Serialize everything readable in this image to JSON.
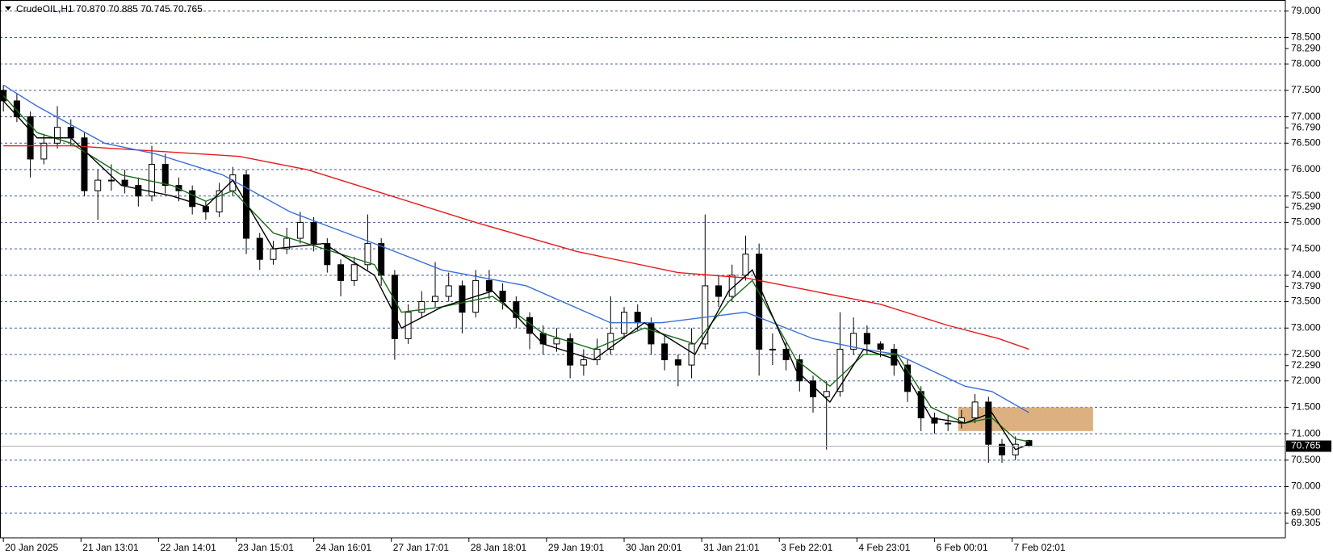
{
  "chart_data": {
    "type": "candlestick",
    "title": "CrudeOIL,H1  70.870 70.885 70.745 70.765",
    "xlim": [
      -1,
      380
    ],
    "ylim": [
      69.03,
      79.21
    ],
    "grid": true,
    "grid_color": "#3c5a9a",
    "yticks": [
      {
        "value": 79,
        "label": "79.000"
      },
      {
        "value": 78.5,
        "label": "78.500"
      },
      {
        "value": 78,
        "label": "78.000"
      },
      {
        "value": 77.5,
        "label": "77.500"
      },
      {
        "value": 77,
        "label": "77.000"
      },
      {
        "value": 76.5,
        "label": "76.500"
      },
      {
        "value": 76,
        "label": "76.000"
      },
      {
        "value": 75.5,
        "label": "75.500"
      },
      {
        "value": 75,
        "label": "75.000"
      },
      {
        "value": 74.5,
        "label": "74.500"
      },
      {
        "value": 74,
        "label": "74.000"
      },
      {
        "value": 73.5,
        "label": "73.500"
      },
      {
        "value": 73,
        "label": "73.000"
      },
      {
        "value": 72.5,
        "label": "72.500"
      },
      {
        "value": 72,
        "label": "72.000"
      },
      {
        "value": 71.5,
        "label": "71.500"
      },
      {
        "value": 71,
        "label": "71.000"
      },
      {
        "value": 70.5,
        "label": "70.500"
      },
      {
        "value": 70,
        "label": "70.000"
      },
      {
        "value": 69.5,
        "label": "69.500"
      }
    ],
    "price_labels": [
      {
        "value": 78.29,
        "label": "78.290"
      },
      {
        "value": 76.79,
        "label": "76.790"
      },
      {
        "value": 75.29,
        "label": "75.290"
      },
      {
        "value": 73.79,
        "label": "73.790"
      },
      {
        "value": 72.29,
        "label": "72.290"
      },
      {
        "value": 69.305,
        "label": "69.305"
      }
    ],
    "current_price": {
      "value": 70.765,
      "label": "70.765"
    },
    "xticks": [
      {
        "value": 0,
        "label": "20 Jan 2025"
      },
      {
        "value": 23,
        "label": "21 Jan 13:01"
      },
      {
        "value": 46,
        "label": "22 Jan 14:01"
      },
      {
        "value": 69,
        "label": "23 Jan 15:01"
      },
      {
        "value": 92,
        "label": "24 Jan 16:01"
      },
      {
        "value": 115,
        "label": "27 Jan 17:01"
      },
      {
        "value": 138,
        "label": "28 Jan 18:01"
      },
      {
        "value": 161,
        "label": "29 Jan 19:01"
      },
      {
        "value": 184,
        "label": "30 Jan 20:01"
      },
      {
        "value": 207,
        "label": "31 Jan 21:01"
      },
      {
        "value": 230,
        "label": "3 Feb 22:01"
      },
      {
        "value": 253,
        "label": "4 Feb 23:01"
      },
      {
        "value": 276,
        "label": "6 Feb 00:01"
      },
      {
        "value": 299,
        "label": "7 Feb 02:01"
      }
    ],
    "candles": {
      "x": [
        0,
        4,
        8,
        12,
        16,
        20,
        24,
        28,
        32,
        36,
        40,
        44,
        48,
        52,
        56,
        60,
        64,
        68,
        72,
        76,
        80,
        84,
        88,
        92,
        96,
        100,
        104,
        108,
        112,
        116,
        120,
        124,
        128,
        132,
        136,
        140,
        144,
        148,
        152,
        156,
        160,
        164,
        168,
        172,
        176,
        180,
        184,
        188,
        192,
        196,
        200,
        204,
        208,
        212,
        216,
        220,
        224,
        228,
        232,
        236,
        240,
        244,
        248,
        252,
        256,
        260,
        264,
        268,
        272,
        276,
        280,
        284,
        288,
        292,
        296,
        300,
        304
      ],
      "open": [
        77.5,
        77.3,
        77.0,
        76.2,
        76.5,
        76.8,
        76.6,
        75.6,
        75.8,
        75.8,
        75.7,
        75.5,
        76.1,
        75.7,
        75.6,
        75.3,
        75.2,
        75.6,
        75.9,
        74.7,
        74.3,
        74.5,
        74.7,
        75.0,
        74.6,
        74.2,
        73.9,
        74.2,
        74.6,
        74.0,
        72.8,
        73.3,
        73.5,
        73.6,
        73.8,
        73.3,
        73.9,
        73.7,
        73.5,
        73.2,
        72.9,
        72.7,
        72.8,
        72.3,
        72.4,
        72.6,
        72.9,
        73.3,
        73.1,
        72.7,
        72.4,
        72.3,
        72.7,
        73.8,
        73.6,
        74.0,
        74.4,
        72.6,
        72.6,
        72.4,
        72.0,
        71.7,
        71.8,
        72.6,
        72.9,
        72.7,
        72.6,
        72.3,
        71.8,
        71.3,
        71.2,
        71.2,
        71.3,
        71.6,
        70.8,
        70.6,
        70.87
      ],
      "high": [
        77.6,
        77.45,
        77.1,
        76.65,
        77.2,
        76.95,
        76.7,
        76.0,
        76.1,
        76.0,
        75.85,
        76.45,
        76.3,
        75.85,
        75.7,
        75.4,
        75.75,
        76.05,
        76.0,
        74.8,
        74.65,
        74.9,
        75.2,
        75.1,
        74.7,
        74.3,
        74.35,
        75.15,
        74.7,
        74.1,
        73.45,
        73.7,
        74.25,
        74.05,
        73.9,
        74.1,
        74.1,
        73.85,
        73.6,
        73.3,
        73.05,
        73.0,
        72.9,
        72.6,
        72.8,
        73.6,
        73.4,
        73.45,
        73.2,
        72.85,
        72.5,
        73.0,
        75.15,
        74.0,
        74.2,
        74.75,
        74.6,
        72.9,
        72.75,
        72.5,
        72.1,
        72.0,
        73.3,
        73.2,
        73.05,
        72.75,
        72.7,
        72.4,
        71.9,
        71.4,
        71.35,
        71.45,
        71.75,
        71.7,
        70.9,
        70.95,
        70.885
      ],
      "low": [
        77.1,
        76.9,
        75.85,
        76.1,
        76.4,
        76.45,
        75.5,
        75.05,
        75.6,
        75.55,
        75.3,
        75.4,
        75.55,
        75.4,
        75.15,
        75.05,
        75.1,
        75.5,
        74.4,
        74.1,
        74.2,
        74.4,
        74.6,
        74.45,
        74.05,
        73.6,
        73.8,
        74.1,
        73.8,
        72.4,
        72.7,
        73.2,
        73.4,
        73.5,
        72.9,
        73.2,
        73.55,
        73.35,
        73.0,
        72.6,
        72.5,
        72.55,
        72.05,
        72.1,
        72.3,
        72.5,
        72.8,
        72.95,
        72.5,
        72.2,
        71.9,
        72.05,
        72.6,
        73.4,
        73.5,
        73.9,
        72.1,
        72.3,
        72.2,
        71.8,
        71.4,
        70.7,
        71.7,
        72.5,
        72.5,
        72.45,
        72.1,
        71.6,
        71.05,
        71.0,
        71.05,
        71.1,
        71.2,
        70.45,
        70.45,
        70.5,
        70.745
      ],
      "close": [
        77.3,
        77.0,
        76.2,
        76.5,
        76.8,
        76.6,
        75.6,
        75.8,
        75.8,
        75.7,
        75.5,
        76.1,
        75.7,
        75.6,
        75.3,
        75.2,
        75.6,
        75.9,
        74.7,
        74.3,
        74.5,
        74.7,
        75.0,
        74.6,
        74.2,
        73.9,
        74.2,
        74.6,
        74.0,
        72.8,
        73.3,
        73.5,
        73.6,
        73.8,
        73.3,
        73.9,
        73.7,
        73.5,
        73.2,
        72.9,
        72.7,
        72.8,
        72.3,
        72.4,
        72.6,
        72.9,
        73.3,
        73.1,
        72.7,
        72.4,
        72.3,
        72.7,
        73.8,
        73.6,
        74.0,
        74.4,
        72.6,
        72.6,
        72.4,
        72.0,
        71.7,
        71.8,
        72.6,
        72.9,
        72.7,
        72.6,
        72.3,
        71.8,
        71.3,
        71.2,
        71.2,
        71.3,
        71.6,
        70.8,
        70.6,
        70.8,
        70.765
      ],
      "up_color": "#ffffff",
      "down_color": "#000000",
      "edge_color": "#000000"
    },
    "lines": [
      {
        "color": "#e8191c",
        "x": [
          0,
          20,
          45,
          70,
          90,
          115,
          140,
          170,
          200,
          220,
          240,
          260,
          280,
          295,
          304
        ],
        "values": [
          76.45,
          76.45,
          76.35,
          76.25,
          76.0,
          75.5,
          75.0,
          74.45,
          74.05,
          73.95,
          73.7,
          73.45,
          73.05,
          72.8,
          72.6
        ]
      },
      {
        "color": "#3a6fd8",
        "x": [
          0,
          10,
          30,
          45,
          65,
          85,
          110,
          130,
          155,
          180,
          195,
          220,
          240,
          255,
          265,
          285,
          293,
          304
        ],
        "values": [
          77.6,
          77.2,
          76.5,
          76.3,
          75.9,
          75.2,
          74.6,
          74.1,
          73.8,
          73.1,
          73.1,
          73.3,
          72.8,
          72.6,
          72.5,
          71.9,
          71.8,
          71.4
        ]
      },
      {
        "color": "#1a6b1a",
        "x": [
          0,
          10,
          20,
          35,
          50,
          60,
          68,
          80,
          95,
          110,
          118,
          130,
          145,
          160,
          175,
          190,
          205,
          215,
          222,
          235,
          245,
          255,
          265,
          275,
          285,
          293,
          300,
          304
        ],
        "values": [
          77.4,
          76.7,
          76.5,
          75.9,
          75.7,
          75.4,
          75.6,
          74.8,
          74.5,
          74.2,
          73.3,
          73.4,
          73.6,
          72.9,
          72.6,
          73.0,
          72.7,
          73.5,
          73.9,
          72.4,
          71.9,
          72.5,
          72.5,
          71.5,
          71.2,
          71.3,
          70.9,
          70.85
        ]
      },
      {
        "color": "#000000",
        "x": [
          0,
          10,
          20,
          35,
          50,
          60,
          68,
          80,
          95,
          110,
          118,
          130,
          145,
          160,
          175,
          190,
          205,
          215,
          222,
          235,
          245,
          255,
          265,
          275,
          285,
          293,
          300,
          304
        ],
        "values": [
          77.3,
          76.6,
          76.6,
          75.7,
          75.5,
          75.3,
          75.8,
          74.5,
          74.6,
          74.0,
          73.0,
          73.4,
          73.7,
          72.7,
          72.4,
          73.1,
          72.5,
          73.7,
          74.1,
          72.2,
          71.6,
          72.6,
          72.4,
          71.3,
          71.2,
          71.4,
          70.7,
          70.8
        ]
      }
    ],
    "zone": {
      "x": [
        283,
        323
      ],
      "y": [
        71.05,
        71.5
      ],
      "color": "#dcb07f"
    }
  }
}
